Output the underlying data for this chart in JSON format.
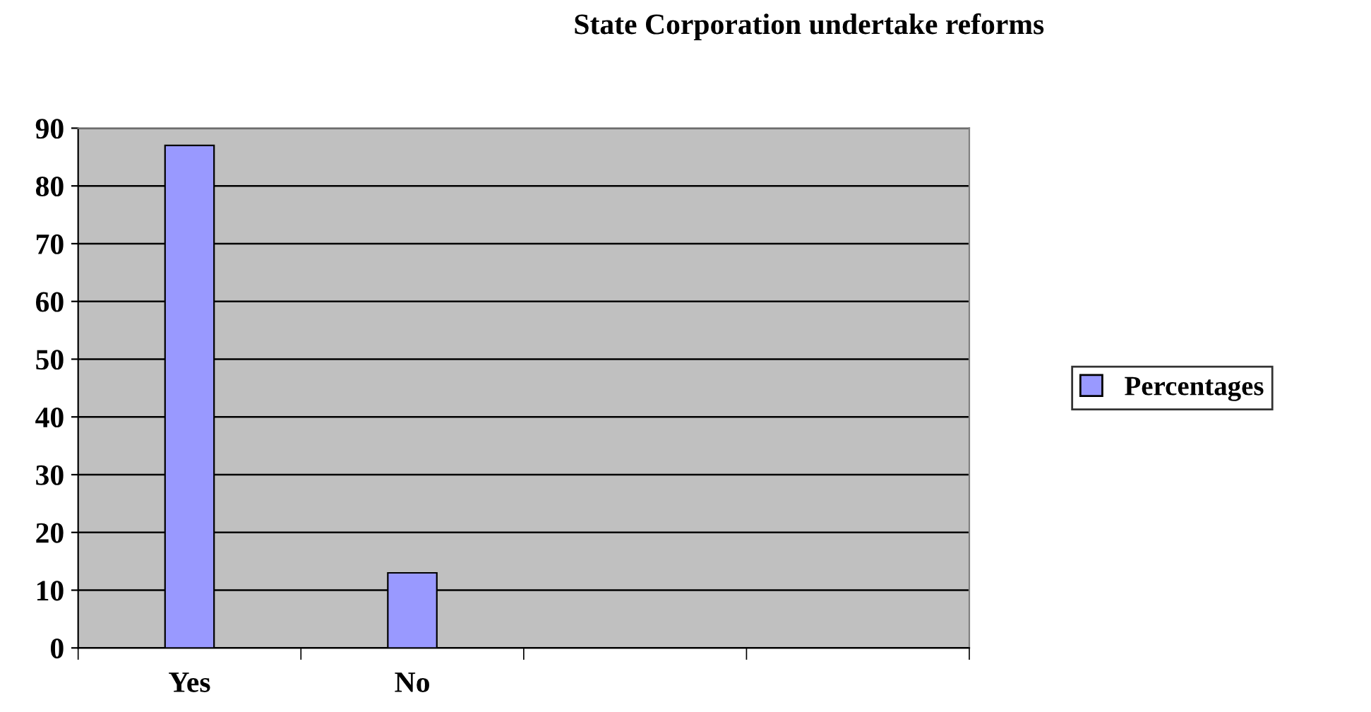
{
  "chart_data": {
    "type": "bar",
    "title": "State Corporation undertake reforms",
    "categories": [
      "Yes",
      "No",
      null,
      null
    ],
    "series": [
      {
        "name": "Percentages",
        "color": "#9999ff",
        "values": [
          87,
          13,
          null,
          null
        ]
      }
    ],
    "ylim": [
      0,
      90
    ],
    "yticks": [
      0,
      10,
      20,
      30,
      40,
      50,
      60,
      70,
      80,
      90
    ],
    "grid": "y",
    "legend": "right"
  }
}
